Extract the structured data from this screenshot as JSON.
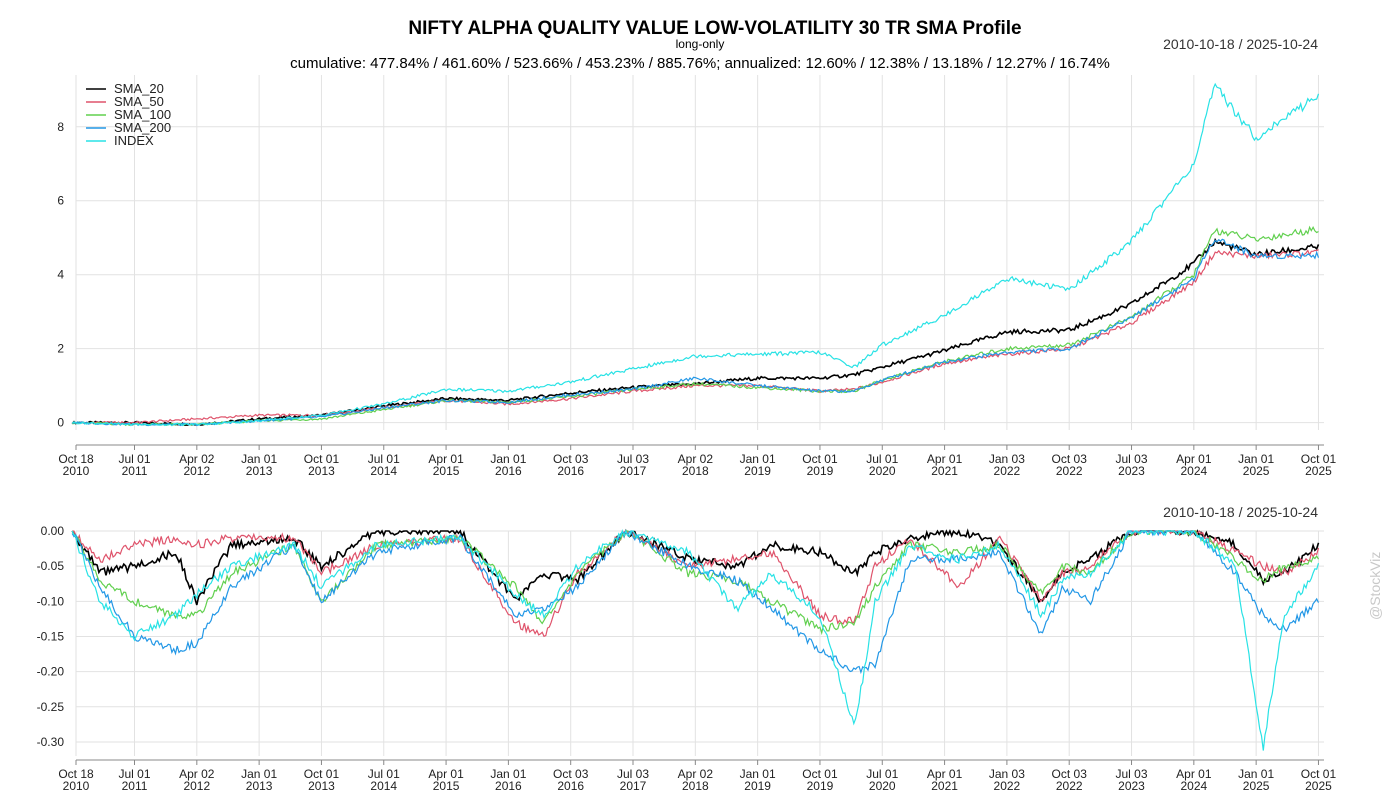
{
  "header": {
    "title": "NIFTY ALPHA QUALITY VALUE LOW-VOLATILITY 30 TR SMA Profile",
    "subtitle": "long-only",
    "stats": "cumulative: 477.84% / 461.60% / 523.66% / 453.23% / 885.76%; annualized: 12.60% / 12.38% / 13.18% / 12.27% / 16.74%",
    "range_top": "2010-10-18 / 2025-10-24",
    "range_bottom": "2010-10-18 / 2025-10-24",
    "watermark": "@StockViz"
  },
  "chart_data": [
    {
      "type": "line",
      "title": "NIFTY ALPHA QUALITY VALUE LOW-VOLATILITY 30 TR SMA Profile",
      "panel": "cumulative returns",
      "xlabels": [
        "Oct 18\n2010",
        "Jul 01\n2011",
        "Apr 02\n2012",
        "Jan 01\n2013",
        "Oct 01\n2013",
        "Jul 01\n2014",
        "Apr 01\n2015",
        "Jan 01\n2016",
        "Oct 03\n2016",
        "Jul 03\n2017",
        "Apr 02\n2018",
        "Jan 01\n2019",
        "Oct 01\n2019",
        "Jul 01\n2020",
        "Apr 01\n2021",
        "Jan 03\n2022",
        "Oct 03\n2022",
        "Jul 03\n2023",
        "Apr 01\n2024",
        "Jan 01\n2025",
        "Oct 01\n2025"
      ],
      "yticks": [
        0,
        2,
        4,
        6,
        8
      ],
      "ylim": [
        -0.2,
        9.4
      ],
      "grid": true,
      "legend": "top-left",
      "x": [
        "2010-10",
        "2011-07",
        "2012-04",
        "2013-01",
        "2013-10",
        "2014-07",
        "2015-04",
        "2016-01",
        "2016-10",
        "2017-07",
        "2018-04",
        "2019-01",
        "2019-10",
        "2020-03",
        "2020-07",
        "2021-04",
        "2022-01",
        "2022-10",
        "2023-07",
        "2024-04",
        "2024-07",
        "2025-01",
        "2025-10"
      ],
      "series": [
        {
          "name": "SMA_20",
          "color": "#000000",
          "values": [
            0.0,
            0.0,
            -0.05,
            0.1,
            0.2,
            0.45,
            0.65,
            0.6,
            0.8,
            0.95,
            1.05,
            1.2,
            1.2,
            1.3,
            1.5,
            1.95,
            2.45,
            2.5,
            3.2,
            4.3,
            4.9,
            4.55,
            4.75
          ]
        },
        {
          "name": "SMA_50",
          "color": "#df536b",
          "values": [
            0.0,
            0.0,
            0.1,
            0.2,
            0.2,
            0.4,
            0.6,
            0.5,
            0.65,
            0.85,
            1.0,
            1.0,
            0.85,
            0.9,
            1.1,
            1.6,
            1.85,
            2.0,
            2.7,
            3.8,
            4.6,
            4.5,
            4.6
          ]
        },
        {
          "name": "SMA_100",
          "color": "#61d04f",
          "values": [
            0.0,
            -0.05,
            -0.05,
            0.05,
            0.1,
            0.35,
            0.6,
            0.55,
            0.7,
            0.9,
            1.05,
            0.95,
            0.85,
            0.85,
            1.15,
            1.65,
            2.0,
            2.1,
            2.85,
            4.0,
            5.2,
            4.95,
            5.24
          ]
        },
        {
          "name": "SMA_200",
          "color": "#2297e6",
          "values": [
            0.0,
            -0.05,
            -0.05,
            0.05,
            0.15,
            0.4,
            0.6,
            0.55,
            0.75,
            0.9,
            1.2,
            1.0,
            0.85,
            0.85,
            1.15,
            1.65,
            1.9,
            2.0,
            2.85,
            3.9,
            5.0,
            4.5,
            4.53
          ]
        },
        {
          "name": "INDEX",
          "color": "#28e2e5",
          "values": [
            0.0,
            -0.05,
            -0.05,
            0.05,
            0.2,
            0.5,
            0.9,
            0.85,
            1.1,
            1.45,
            1.8,
            1.85,
            1.9,
            1.5,
            2.1,
            2.9,
            3.9,
            3.6,
            4.9,
            7.0,
            9.1,
            7.7,
            8.86
          ]
        }
      ]
    },
    {
      "type": "line",
      "panel": "drawdowns",
      "xlabels": [
        "Oct 18\n2010",
        "Jul 01\n2011",
        "Apr 02\n2012",
        "Jan 01\n2013",
        "Oct 01\n2013",
        "Jul 01\n2014",
        "Apr 01\n2015",
        "Jan 01\n2016",
        "Oct 03\n2016",
        "Jul 03\n2017",
        "Apr 02\n2018",
        "Jan 01\n2019",
        "Oct 01\n2019",
        "Jul 01\n2020",
        "Apr 01\n2021",
        "Jan 03\n2022",
        "Oct 03\n2022",
        "Jul 03\n2023",
        "Apr 01\n2024",
        "Jan 01\n2025",
        "Oct 01\n2025"
      ],
      "yticks": [
        "0.00",
        "-0.05",
        "-0.10",
        "-0.15",
        "-0.20",
        "-0.25",
        "-0.30"
      ],
      "ylim": [
        -0.32,
        0.0
      ],
      "grid": true,
      "x": [
        "2010-10",
        "2011-02",
        "2011-07",
        "2012-01",
        "2012-04",
        "2012-09",
        "2013-06",
        "2013-10",
        "2014-06",
        "2015-06",
        "2016-02",
        "2016-06",
        "2016-11",
        "2017-06",
        "2018-03",
        "2018-10",
        "2019-03",
        "2019-10",
        "2020-03",
        "2020-06",
        "2020-11",
        "2021-06",
        "2021-12",
        "2022-06",
        "2022-09",
        "2023-01",
        "2023-07",
        "2024-04",
        "2024-10",
        "2025-02",
        "2025-05",
        "2025-10"
      ],
      "series": [
        {
          "name": "SMA_20",
          "color": "#000000",
          "values": [
            0,
            -0.06,
            -0.05,
            -0.03,
            -0.1,
            -0.02,
            -0.01,
            -0.05,
            0,
            0,
            -0.1,
            -0.06,
            -0.07,
            0,
            -0.04,
            -0.05,
            -0.02,
            -0.03,
            -0.06,
            -0.03,
            -0.01,
            0,
            -0.02,
            -0.1,
            -0.06,
            -0.04,
            0,
            0,
            -0.02,
            -0.07,
            -0.06,
            -0.02
          ]
        },
        {
          "name": "SMA_50",
          "color": "#df536b",
          "values": [
            0,
            -0.04,
            -0.02,
            -0.01,
            -0.02,
            -0.01,
            -0.01,
            -0.06,
            -0.02,
            -0.01,
            -0.13,
            -0.15,
            -0.06,
            0,
            -0.05,
            -0.04,
            -0.03,
            -0.12,
            -0.13,
            -0.05,
            -0.01,
            -0.08,
            -0.01,
            -0.1,
            -0.06,
            -0.05,
            0,
            0,
            -0.03,
            -0.05,
            -0.06,
            -0.03
          ]
        },
        {
          "name": "SMA_100",
          "color": "#61d04f",
          "values": [
            0,
            -0.07,
            -0.1,
            -0.12,
            -0.12,
            -0.06,
            -0.02,
            -0.1,
            -0.02,
            -0.01,
            -0.08,
            -0.13,
            -0.06,
            0,
            -0.06,
            -0.07,
            -0.1,
            -0.14,
            -0.13,
            -0.08,
            -0.02,
            -0.03,
            -0.02,
            -0.09,
            -0.05,
            -0.06,
            0,
            0,
            -0.04,
            -0.07,
            -0.05,
            -0.04
          ]
        },
        {
          "name": "SMA_200",
          "color": "#2297e6",
          "values": [
            0,
            -0.08,
            -0.15,
            -0.17,
            -0.16,
            -0.08,
            -0.02,
            -0.1,
            -0.03,
            -0.01,
            -0.12,
            -0.11,
            -0.08,
            0,
            -0.05,
            -0.07,
            -0.11,
            -0.17,
            -0.2,
            -0.19,
            -0.04,
            -0.04,
            -0.03,
            -0.15,
            -0.08,
            -0.1,
            0,
            0,
            -0.06,
            -0.12,
            -0.14,
            -0.1
          ]
        },
        {
          "name": "INDEX",
          "color": "#28e2e5",
          "values": [
            0,
            -0.1,
            -0.15,
            -0.12,
            -0.09,
            -0.05,
            -0.02,
            -0.08,
            -0.02,
            -0.01,
            -0.09,
            -0.12,
            -0.05,
            0,
            -0.03,
            -0.11,
            -0.06,
            -0.12,
            -0.28,
            -0.1,
            -0.02,
            -0.04,
            -0.02,
            -0.12,
            -0.07,
            -0.06,
            0,
            0,
            -0.05,
            -0.31,
            -0.12,
            -0.05
          ]
        }
      ]
    }
  ]
}
